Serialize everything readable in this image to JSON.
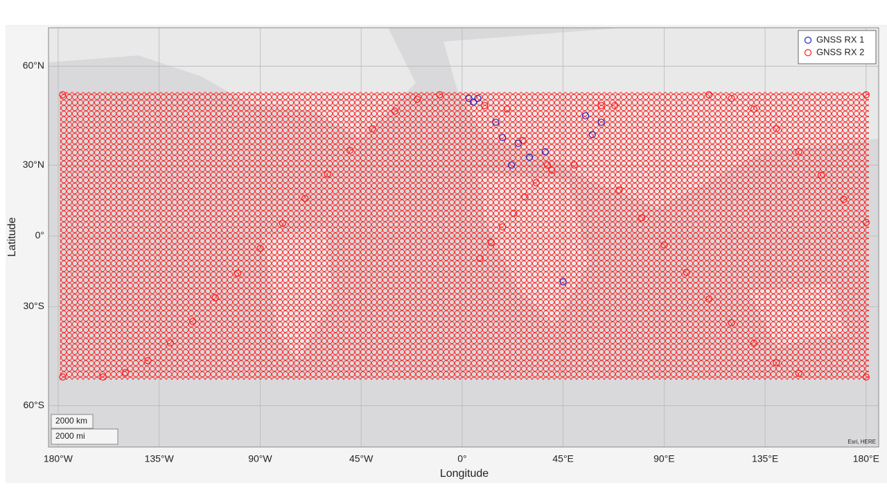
{
  "chart_data": {
    "type": "geoscatter",
    "projection": "mercator",
    "xlabel": "Longitude",
    "ylabel": "Latitude",
    "xlim": [
      -184.3,
      185.6
    ],
    "ylim": [
      -68,
      67.5
    ],
    "xticks": [
      {
        "value": -180,
        "label": "180°W"
      },
      {
        "value": -135,
        "label": "135°W"
      },
      {
        "value": -90,
        "label": "90°W"
      },
      {
        "value": -45,
        "label": "45°W"
      },
      {
        "value": 0,
        "label": "0°"
      },
      {
        "value": 45,
        "label": "45°E"
      },
      {
        "value": 90,
        "label": "90°E"
      },
      {
        "value": 135,
        "label": "135°E"
      },
      {
        "value": 180,
        "label": "180°E"
      }
    ],
    "yticks": [
      {
        "value": -60,
        "label": "60°S"
      },
      {
        "value": -30,
        "label": "30°S"
      },
      {
        "value": 0,
        "label": "0°"
      },
      {
        "value": 30,
        "label": "30°N"
      },
      {
        "value": 60,
        "label": "60°N"
      }
    ],
    "grid": true,
    "legend": "top-right",
    "scale_bar": [
      "2000 km",
      "2000 mi"
    ],
    "attribution": "Esri, HERE",
    "series": [
      {
        "name": "GNSS RX 1",
        "color": "#2020c0",
        "x": [
          3,
          5,
          7,
          18,
          25,
          30,
          37,
          55,
          58,
          62,
          22,
          45,
          15
        ],
        "y": [
          52,
          51,
          52,
          40,
          38,
          33,
          35,
          47,
          41,
          45,
          30,
          -20,
          45
        ]
      },
      {
        "name": "GNSS RX 2",
        "color": "#ff1a1a",
        "x": [
          -178,
          180,
          -178,
          180,
          -160,
          -150,
          -140,
          -130,
          -120,
          -110,
          -100,
          -90,
          -80,
          -70,
          -60,
          -50,
          -40,
          -30,
          -20,
          -10,
          110,
          120,
          130,
          140,
          150,
          160,
          170,
          180,
          70,
          80,
          90,
          100,
          110,
          120,
          130,
          140,
          150,
          8,
          13,
          18,
          23,
          28,
          33,
          38,
          10,
          20,
          27,
          62,
          68,
          50,
          40
        ],
        "y": [
          53,
          53,
          -53,
          -53,
          -53,
          -51.8,
          -48.4,
          -42.9,
          -35.5,
          -26.5,
          -16.4,
          -5.6,
          5.6,
          16.4,
          26.5,
          35.5,
          42.9,
          48.4,
          51.8,
          53,
          53,
          52,
          49,
          43,
          35,
          26,
          16,
          6,
          20,
          8,
          -4,
          -16,
          -27,
          -36,
          -43,
          -49,
          -52,
          -10,
          -3,
          4,
          10,
          17,
          23,
          30,
          50,
          49,
          39,
          50,
          50,
          30,
          28
        ]
      }
    ]
  }
}
